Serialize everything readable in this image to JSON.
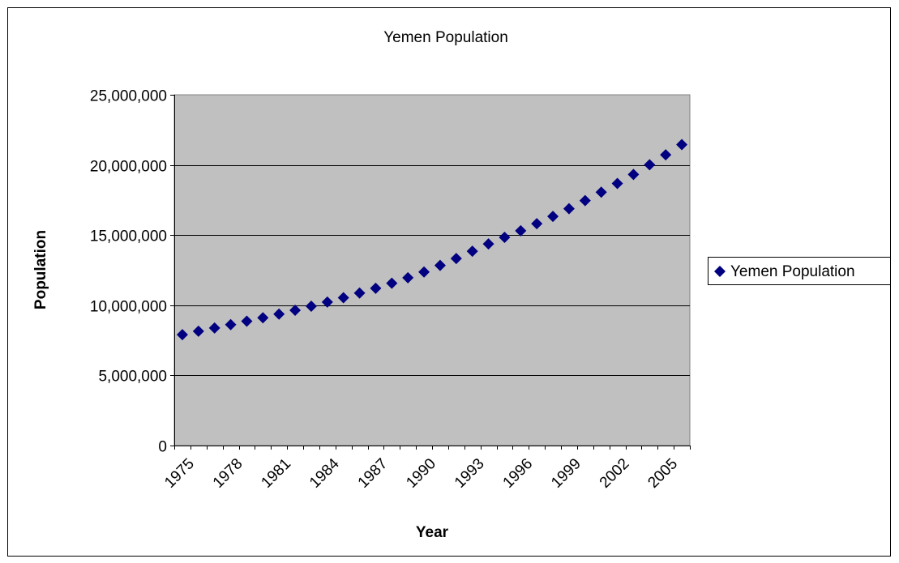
{
  "chart_data": {
    "type": "scatter",
    "title": "Yemen Population",
    "xlabel": "Year",
    "ylabel": "Population",
    "ylim": [
      0,
      25000000
    ],
    "yticks": [
      0,
      5000000,
      10000000,
      15000000,
      20000000,
      25000000
    ],
    "ytick_labels": [
      "0",
      "5,000,000",
      "10,000,000",
      "15,000,000",
      "20,000,000",
      "25,000,000"
    ],
    "xlim": [
      1975,
      2006
    ],
    "xtick_labels": [
      "1975",
      "1978",
      "1981",
      "1984",
      "1987",
      "1990",
      "1993",
      "1996",
      "1999",
      "2002",
      "2005"
    ],
    "grid": true,
    "legend_position": "right",
    "plot_background": "#c0c0c0",
    "marker_color": "#000080",
    "series": [
      {
        "name": "Yemen Population",
        "x": [
          1975,
          1976,
          1977,
          1978,
          1979,
          1980,
          1981,
          1982,
          1983,
          1984,
          1985,
          1986,
          1987,
          1988,
          1989,
          1990,
          1991,
          1992,
          1993,
          1994,
          1995,
          1996,
          1997,
          1998,
          1999,
          2000,
          2001,
          2002,
          2003,
          2004,
          2005,
          2006
        ],
        "values": [
          7900000,
          8150000,
          8380000,
          8620000,
          8860000,
          9110000,
          9370000,
          9640000,
          9930000,
          10230000,
          10540000,
          10870000,
          11210000,
          11570000,
          11960000,
          12370000,
          12840000,
          13330000,
          13850000,
          14370000,
          14840000,
          15310000,
          15810000,
          16330000,
          16880000,
          17460000,
          18060000,
          18680000,
          19320000,
          20010000,
          20720000,
          21450000
        ]
      }
    ]
  }
}
